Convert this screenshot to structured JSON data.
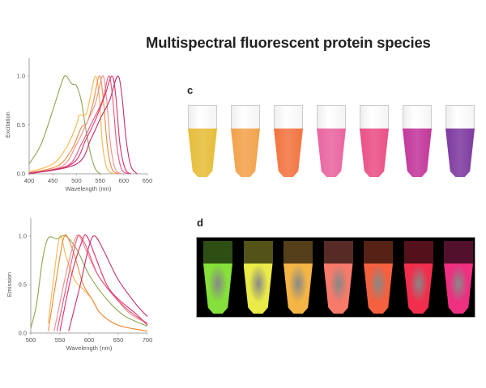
{
  "title": "Multispectral fluorescent protein species",
  "panels": {
    "c": "c",
    "d": "d"
  },
  "tube_colors_c": [
    "#e6bd3a",
    "#f2a24c",
    "#f27440",
    "#e965a0",
    "#ea4f86",
    "#c2379a",
    "#7e3aa0"
  ],
  "tube_colors_d": [
    "#86e03a",
    "#eaea48",
    "#f4b545",
    "#f77a6a",
    "#f5603f",
    "#f22e4c",
    "#ef2f80"
  ],
  "chart_data": [
    {
      "type": "line",
      "title": "",
      "xlabel": "Wavelength (nm)",
      "ylabel": "Excitation",
      "xlim": [
        400,
        650
      ],
      "ylim": [
        0,
        1.2
      ],
      "xticks": [
        "400",
        "450",
        "500",
        "550",
        "600",
        "650"
      ],
      "yticks": [
        "0.0",
        "0.5",
        "1.0"
      ],
      "series": [
        {
          "color": "#8aa64f",
          "points": [
            [
              400,
              0.1
            ],
            [
              425,
              0.3
            ],
            [
              450,
              0.65
            ],
            [
              470,
              0.95
            ],
            [
              478,
              1
            ],
            [
              490,
              0.92
            ],
            [
              500,
              0.9
            ],
            [
              510,
              0.75
            ],
            [
              520,
              0.45
            ],
            [
              530,
              0.2
            ],
            [
              540,
              0.05
            ],
            [
              550,
              0
            ]
          ]
        },
        {
          "color": "#f7b64a",
          "points": [
            [
              400,
              0.02
            ],
            [
              450,
              0.1
            ],
            [
              480,
              0.28
            ],
            [
              500,
              0.5
            ],
            [
              506,
              0.6
            ],
            [
              520,
              0.61
            ],
            [
              530,
              0.8
            ],
            [
              540,
              1
            ],
            [
              548,
              0.8
            ],
            [
              555,
              0.3
            ],
            [
              565,
              0.05
            ],
            [
              580,
              0
            ]
          ]
        },
        {
          "color": "#f08a3c",
          "points": [
            [
              400,
              0.01
            ],
            [
              460,
              0.08
            ],
            [
              490,
              0.25
            ],
            [
              510,
              0.47
            ],
            [
              522,
              0.52
            ],
            [
              535,
              0.72
            ],
            [
              548,
              1
            ],
            [
              556,
              0.8
            ],
            [
              565,
              0.3
            ],
            [
              575,
              0.05
            ],
            [
              590,
              0
            ]
          ]
        },
        {
          "color": "#f08c8c",
          "points": [
            [
              400,
              0.01
            ],
            [
              470,
              0.08
            ],
            [
              500,
              0.3
            ],
            [
              520,
              0.5
            ],
            [
              540,
              0.72
            ],
            [
              555,
              1
            ],
            [
              563,
              0.8
            ],
            [
              572,
              0.3
            ],
            [
              582,
              0.05
            ],
            [
              595,
              0
            ]
          ]
        },
        {
          "color": "#e8557a",
          "points": [
            [
              400,
              0.01
            ],
            [
              480,
              0.08
            ],
            [
              510,
              0.3
            ],
            [
              530,
              0.5
            ],
            [
              555,
              0.75
            ],
            [
              568,
              1
            ],
            [
              576,
              0.8
            ],
            [
              585,
              0.3
            ],
            [
              595,
              0.05
            ],
            [
              610,
              0
            ]
          ]
        },
        {
          "color": "#e0306a",
          "points": [
            [
              400,
              0
            ],
            [
              490,
              0.1
            ],
            [
              520,
              0.35
            ],
            [
              540,
              0.55
            ],
            [
              560,
              0.8
            ],
            [
              575,
              1
            ],
            [
              583,
              0.8
            ],
            [
              592,
              0.3
            ],
            [
              603,
              0.05
            ],
            [
              615,
              0
            ]
          ]
        },
        {
          "color": "#c42e6e",
          "points": [
            [
              400,
              0
            ],
            [
              500,
              0.1
            ],
            [
              530,
              0.35
            ],
            [
              550,
              0.56
            ],
            [
              570,
              0.75
            ],
            [
              587,
              1
            ],
            [
              596,
              0.8
            ],
            [
              605,
              0.35
            ],
            [
              615,
              0.08
            ],
            [
              628,
              0
            ]
          ]
        }
      ]
    },
    {
      "type": "line",
      "title": "",
      "xlabel": "Wavelength (nm)",
      "ylabel": "Emission",
      "xlim": [
        500,
        700
      ],
      "ylim": [
        0,
        1.2
      ],
      "xticks": [
        "500",
        "550",
        "600",
        "650",
        "700"
      ],
      "yticks": [
        "0.0",
        "0.5",
        "1.0"
      ],
      "series": [
        {
          "color": "#8aa64f",
          "points": [
            [
              500,
              0.05
            ],
            [
              510,
              0.3
            ],
            [
              520,
              0.75
            ],
            [
              530,
              0.98
            ],
            [
              545,
              0.97
            ],
            [
              560,
              1
            ],
            [
              580,
              0.85
            ],
            [
              600,
              0.6
            ],
            [
              630,
              0.35
            ],
            [
              660,
              0.18
            ],
            [
              700,
              0.07
            ]
          ]
        },
        {
          "color": "#f7b64a",
          "points": [
            [
              530,
              0.1
            ],
            [
              540,
              0.6
            ],
            [
              550,
              1
            ],
            [
              560,
              0.8
            ],
            [
              575,
              0.55
            ],
            [
              590,
              0.45
            ],
            [
              605,
              0.35
            ],
            [
              620,
              0.2
            ],
            [
              650,
              0.08
            ],
            [
              700,
              0.02
            ]
          ]
        },
        {
          "color": "#f08a3c",
          "points": [
            [
              530,
              0.02
            ],
            [
              545,
              0.6
            ],
            [
              555,
              0.95
            ],
            [
              562,
              1
            ],
            [
              575,
              0.8
            ],
            [
              590,
              0.5
            ],
            [
              605,
              0.35
            ],
            [
              620,
              0.2
            ],
            [
              650,
              0.08
            ],
            [
              700,
              0.02
            ]
          ]
        },
        {
          "color": "#f08c8c",
          "points": [
            [
              540,
              0.02
            ],
            [
              560,
              0.6
            ],
            [
              575,
              0.95
            ],
            [
              583,
              1
            ],
            [
              595,
              0.85
            ],
            [
              615,
              0.6
            ],
            [
              640,
              0.4
            ],
            [
              670,
              0.2
            ],
            [
              700,
              0.1
            ]
          ]
        },
        {
          "color": "#e8557a",
          "points": [
            [
              545,
              0.02
            ],
            [
              565,
              0.6
            ],
            [
              578,
              0.95
            ],
            [
              585,
              1
            ],
            [
              598,
              0.85
            ],
            [
              615,
              0.6
            ],
            [
              640,
              0.4
            ],
            [
              670,
              0.22
            ],
            [
              700,
              0.1
            ]
          ]
        },
        {
          "color": "#e0306a",
          "points": [
            [
              550,
              0.02
            ],
            [
              570,
              0.6
            ],
            [
              588,
              0.95
            ],
            [
              596,
              1
            ],
            [
              610,
              0.8
            ],
            [
              630,
              0.5
            ],
            [
              650,
              0.35
            ],
            [
              680,
              0.2
            ],
            [
              700,
              0.08
            ]
          ]
        },
        {
          "color": "#c42e6e",
          "points": [
            [
              565,
              0.02
            ],
            [
              585,
              0.5
            ],
            [
              600,
              0.9
            ],
            [
              610,
              1
            ],
            [
              625,
              0.85
            ],
            [
              650,
              0.55
            ],
            [
              680,
              0.3
            ],
            [
              700,
              0.17
            ]
          ]
        }
      ]
    }
  ]
}
